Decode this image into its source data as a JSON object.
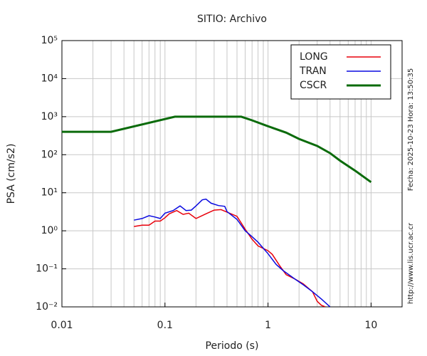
{
  "chart_data": {
    "type": "line",
    "title": "SITIO: Archivo",
    "xlabel": "Periodo (s)",
    "ylabel": "PSA (cm/s2)",
    "side_texts": [
      "Fecha: 2025-10-23 Hora: 13:50:35",
      "http://www.lis.ucr.ac.cr"
    ],
    "xscale": "log",
    "yscale": "log",
    "grid": true,
    "minor_grid": true,
    "legend": "upper right",
    "xlim": [
      0.01,
      20
    ],
    "xticks": [
      0.01,
      0.1,
      1,
      10
    ],
    "ylim": [
      0.01,
      100000
    ],
    "yticks": [
      {
        "value": 0.01,
        "label": "10⁻²"
      },
      {
        "value": 0.1,
        "label": "10⁻¹"
      },
      {
        "value": 1,
        "label": "10⁰"
      },
      {
        "value": 10,
        "label": "10¹"
      },
      {
        "value": 100,
        "label": "10²"
      },
      {
        "value": 1000,
        "label": "10³"
      },
      {
        "value": 10000,
        "label": "10⁴"
      },
      {
        "value": 100000,
        "label": "10⁵"
      }
    ],
    "series": [
      {
        "name": "LONG",
        "color": "#e8000b",
        "width": 1.5,
        "x": [
          0.05,
          0.06,
          0.07,
          0.08,
          0.09,
          0.1,
          0.11,
          0.13,
          0.15,
          0.17,
          0.2,
          0.25,
          0.3,
          0.35,
          0.4,
          0.5,
          0.6,
          0.7,
          0.8,
          1.0,
          1.1,
          1.3,
          1.5,
          1.8,
          2.2,
          2.7,
          3.0,
          3.3,
          3.6
        ],
        "values": [
          1.3,
          1.4,
          1.4,
          1.8,
          1.8,
          2.2,
          2.8,
          3.4,
          2.7,
          2.9,
          2.1,
          2.8,
          3.5,
          3.6,
          3.1,
          2.4,
          1.1,
          0.6,
          0.4,
          0.3,
          0.24,
          0.12,
          0.07,
          0.055,
          0.04,
          0.025,
          0.014,
          0.011,
          0.01
        ]
      },
      {
        "name": "TRAN",
        "color": "#0a0ae0",
        "width": 1.5,
        "x": [
          0.05,
          0.06,
          0.07,
          0.08,
          0.09,
          0.1,
          0.12,
          0.14,
          0.16,
          0.18,
          0.2,
          0.23,
          0.25,
          0.28,
          0.33,
          0.38,
          0.4,
          0.5,
          0.6,
          0.7,
          0.8,
          1.0,
          1.2,
          1.4,
          1.8,
          2.2,
          2.7,
          3.3,
          4.0
        ],
        "values": [
          1.9,
          2.1,
          2.5,
          2.3,
          2.1,
          2.9,
          3.4,
          4.5,
          3.4,
          3.5,
          4.5,
          6.5,
          6.8,
          5.3,
          4.6,
          4.4,
          3.2,
          2.0,
          1.0,
          0.7,
          0.5,
          0.25,
          0.13,
          0.09,
          0.055,
          0.038,
          0.025,
          0.016,
          0.01
        ]
      },
      {
        "name": "CSCR",
        "color": "#0b6b0b",
        "width": 3,
        "x": [
          0.01,
          0.03,
          0.125,
          0.55,
          0.7,
          1,
          1.5,
          2,
          3,
          4,
          5,
          7,
          10
        ],
        "values": [
          400,
          400,
          1000,
          1000,
          800,
          560,
          380,
          260,
          170,
          110,
          70,
          38,
          19
        ]
      }
    ]
  }
}
